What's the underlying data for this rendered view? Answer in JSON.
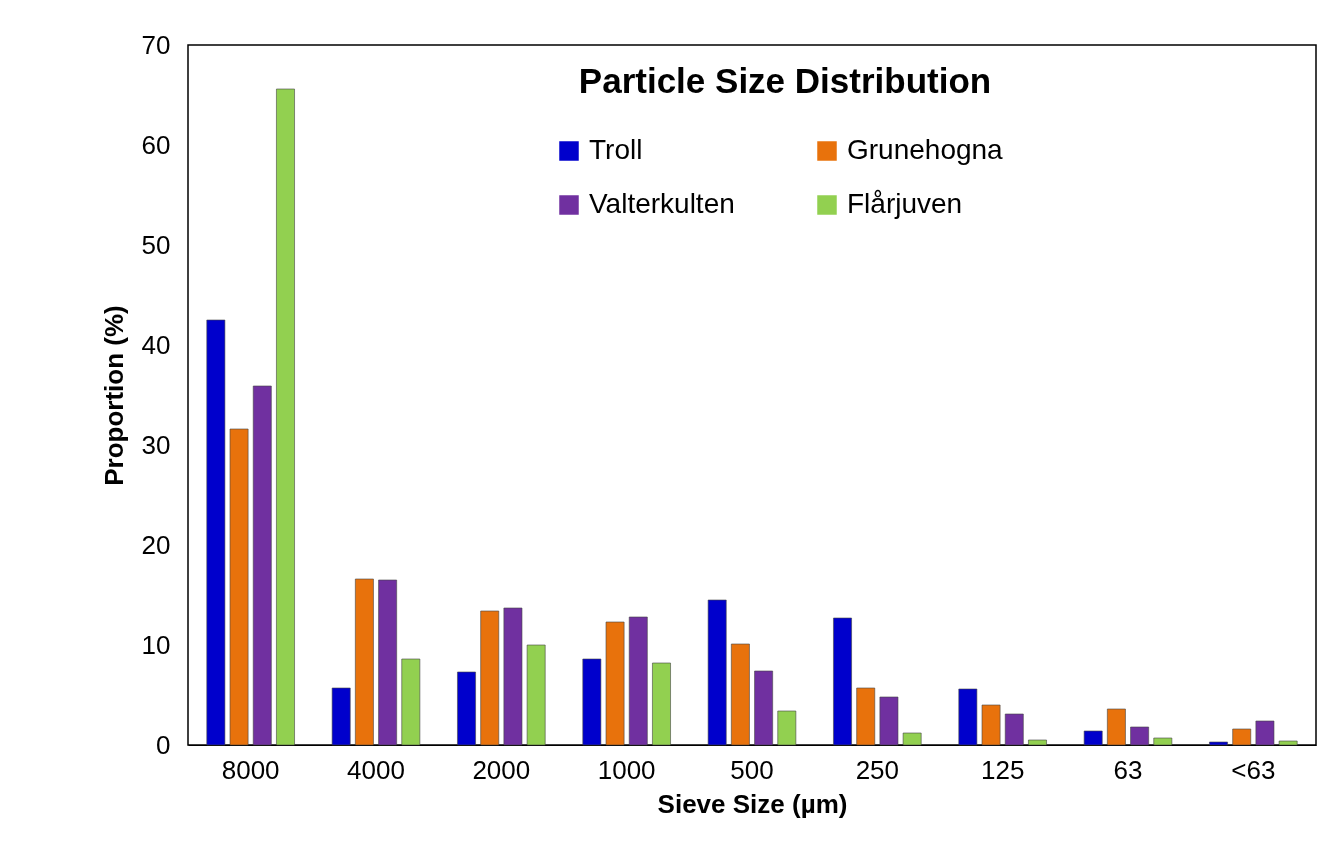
{
  "chart_data": {
    "type": "bar",
    "title": "Particle Size Distribution",
    "xlabel": "Sieve Size (µm)",
    "ylabel": "Proportion (%)",
    "categories": [
      "8000",
      "4000",
      "2000",
      "1000",
      "500",
      "250",
      "125",
      "63",
      "<63"
    ],
    "series": [
      {
        "name": "Troll",
        "color": "#0000cc",
        "values": [
          42.5,
          5.7,
          7.3,
          8.6,
          14.5,
          12.7,
          5.6,
          1.4,
          0.3
        ]
      },
      {
        "name": "Grunehogna",
        "color": "#e8720c",
        "values": [
          31.6,
          16.6,
          13.4,
          12.3,
          10.1,
          5.7,
          4.0,
          3.6,
          1.6
        ]
      },
      {
        "name": "Valterkulten",
        "color": "#7030a0",
        "values": [
          35.9,
          16.5,
          13.7,
          12.8,
          7.4,
          4.8,
          3.1,
          1.8,
          2.4
        ]
      },
      {
        "name": "Flårjuven",
        "color": "#92d050",
        "values": [
          65.6,
          8.6,
          10.0,
          8.2,
          3.4,
          1.2,
          0.5,
          0.7,
          0.4
        ]
      }
    ],
    "ylim": [
      0,
      70
    ],
    "yticks": [
      0,
      10,
      20,
      30,
      40,
      50,
      60,
      70
    ],
    "grid": false,
    "legend": "top right"
  }
}
